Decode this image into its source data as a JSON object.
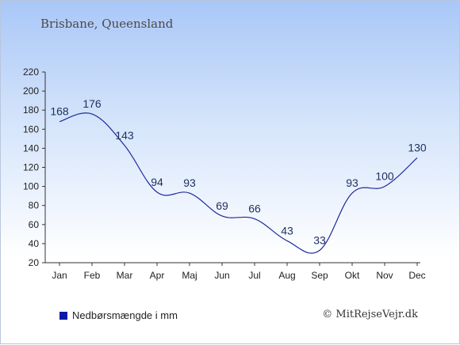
{
  "header": {
    "title": "Brisbane, Queensland"
  },
  "legend": {
    "label": "Nedbørsmængde i mm"
  },
  "footer": {
    "credit": "© MitRejseVejr.dk"
  },
  "colors": {
    "line": "#1f2a9a",
    "swatch": "#0a1aa8",
    "axis": "#333333"
  },
  "chart_data": {
    "type": "line",
    "title": "Brisbane, Queensland",
    "xlabel": "",
    "ylabel": "",
    "categories": [
      "Jan",
      "Feb",
      "Mar",
      "Apr",
      "Maj",
      "Jun",
      "Jul",
      "Aug",
      "Sep",
      "Okt",
      "Nov",
      "Dec"
    ],
    "series": [
      {
        "name": "Nedbørsmængde i mm",
        "values": [
          168,
          176,
          143,
          94,
          93,
          69,
          66,
          43,
          33,
          93,
          100,
          130
        ]
      }
    ],
    "yticks": [
      20,
      40,
      60,
      80,
      100,
      120,
      140,
      160,
      180,
      200,
      220
    ],
    "ylim": [
      20,
      220
    ],
    "grid": false,
    "legend_position": "bottom-left"
  }
}
